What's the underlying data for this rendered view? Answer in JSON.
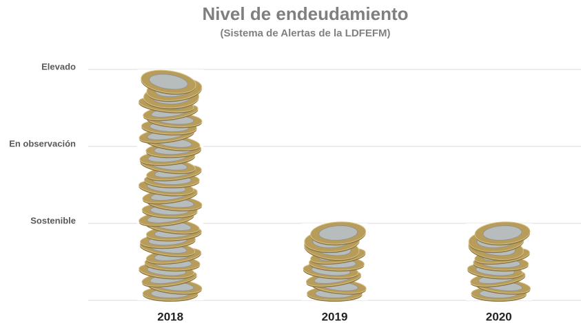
{
  "chart_data": {
    "type": "bar",
    "title": "Nivel de endeudamiento",
    "subtitle": "(Sistema de Alertas de la LDFEFM)",
    "categories": [
      "2018",
      "2019",
      "2020"
    ],
    "values": [
      3,
      1,
      1
    ],
    "color": "#b89c5a",
    "ylim": [
      0,
      3
    ],
    "yticks": [
      {
        "value": 1,
        "label": "Sostenible"
      },
      {
        "value": 2,
        "label": "En observación"
      },
      {
        "value": 3,
        "label": "Elevado"
      }
    ],
    "grid": true
  }
}
